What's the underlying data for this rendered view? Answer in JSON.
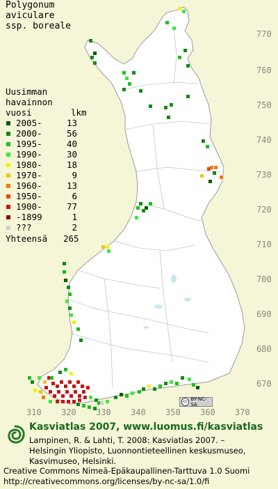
{
  "title_lines": [
    "Polygonum",
    "aviculare",
    "ssp. boreale"
  ],
  "legend": {
    "heading_lines": [
      "Uusimman",
      "havainnon"
    ],
    "col_left": "vuosi",
    "col_right": "lkm",
    "rows": [
      {
        "label": "2005-",
        "count": "13",
        "color": "#0a5a0a"
      },
      {
        "label": "2000-",
        "count": "56",
        "color": "#138a13"
      },
      {
        "label": "1995-",
        "count": "40",
        "color": "#1fbf1f"
      },
      {
        "label": "1990-",
        "count": "30",
        "color": "#3ee83e"
      },
      {
        "label": "1980-",
        "count": "18",
        "color": "#f2f20a"
      },
      {
        "label": "1970-",
        "count": "9",
        "color": "#f2c41a"
      },
      {
        "label": "1960-",
        "count": "13",
        "color": "#f07a10"
      },
      {
        "label": "1950-",
        "count": "6",
        "color": "#e04a10"
      },
      {
        "label": "1900-",
        "count": "77",
        "color": "#c81414"
      },
      {
        "label": "-1899",
        "count": "1",
        "color": "#8a0a0a"
      },
      {
        "label": "???",
        "count": "2",
        "color": "#cfcfcf"
      }
    ],
    "total_label": "Yhteensä",
    "total_count": "265"
  },
  "y_axis_labels": [
    "770",
    "760",
    "750",
    "740",
    "730",
    "720",
    "710",
    "700",
    "690",
    "680",
    "670"
  ],
  "x_axis_labels": [
    "310",
    "320",
    "330",
    "340",
    "350",
    "360",
    "370"
  ],
  "cc_badge": "BY-NC-SA",
  "footer": {
    "title": "Kasviatlas 2007, www.luomus.fi/kasviatlas",
    "citation": [
      "Lampinen, R. & Lahti, T. 2008: Kasviatlas 2007. –",
      "Helsingin Yliopisto, Luonnontieteellinen keskusmuseo,",
      "Kasvimuseo, Helsinki."
    ],
    "license": [
      "Creative Commons Nimeä-Epäkaupallinen-Tarttuva 1.0 Suomi",
      "http://creativecommons.org/licenses/by-nc-sa/1.0/fi"
    ]
  },
  "colors": {
    "background": "#f5f5d8",
    "land": "#ffffff",
    "boundary": "#b8b8b8",
    "grid_label": "#8a8a7a",
    "footer_title": "#1a6a1a"
  }
}
